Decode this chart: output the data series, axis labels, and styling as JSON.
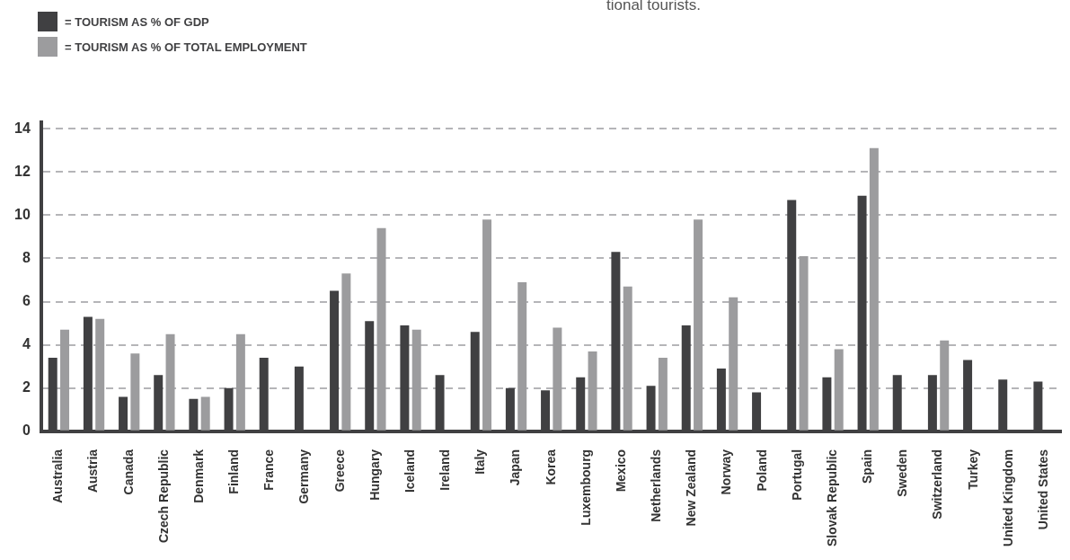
{
  "chart_data": {
    "type": "bar",
    "categories": [
      "Australia",
      "Austria",
      "Canada",
      "Czech Republic",
      "Denmark",
      "Finland",
      "France",
      "Germany",
      "Greece",
      "Hungary",
      "Iceland",
      "Ireland",
      "Italy",
      "Japan",
      "Korea",
      "Luxembourg",
      "Mexico",
      "Netherlands",
      "New Zealand",
      "Norway",
      "Poland",
      "Portugal",
      "Slovak Republic",
      "Spain",
      "Sweden",
      "Switzerland",
      "Turkey",
      "United Kingdom",
      "United States"
    ],
    "series": [
      {
        "name": "= TOURISM AS % OF GDP",
        "color": "#404042",
        "values": [
          3.4,
          5.3,
          1.6,
          2.6,
          1.5,
          2.0,
          3.4,
          3.0,
          6.5,
          5.1,
          4.9,
          2.6,
          4.6,
          2.0,
          1.9,
          2.5,
          8.3,
          2.1,
          4.9,
          2.9,
          1.8,
          10.7,
          2.5,
          10.9,
          2.6,
          2.6,
          3.3,
          2.4,
          2.3
        ]
      },
      {
        "name": "= TOURISM AS % OF TOTAL EMPLOYMENT",
        "color": "#9c9c9e",
        "values": [
          4.7,
          5.2,
          3.6,
          4.5,
          1.6,
          4.5,
          null,
          null,
          7.3,
          9.4,
          4.7,
          null,
          9.8,
          6.9,
          4.8,
          3.7,
          6.7,
          3.4,
          9.8,
          6.2,
          null,
          8.1,
          3.8,
          13.1,
          null,
          4.2,
          null,
          null,
          null
        ]
      }
    ],
    "ylim": [
      0,
      14.3
    ],
    "yticks": [
      0,
      2,
      4,
      6,
      8,
      10,
      12,
      14
    ],
    "grid": "y",
    "legend": "top left",
    "annotations": [
      "tional tourists."
    ]
  }
}
